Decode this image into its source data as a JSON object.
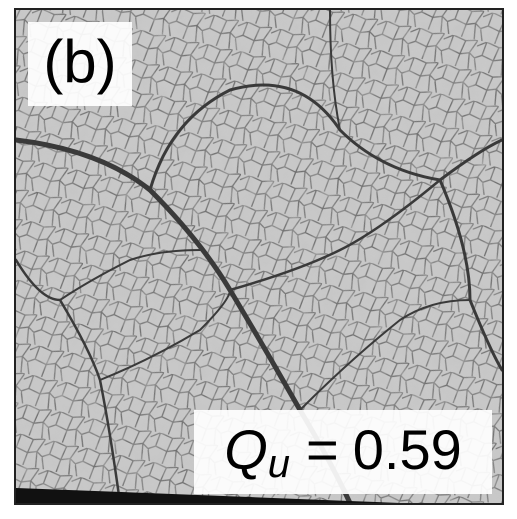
{
  "panel_label": "(b)",
  "annotation": {
    "symbol": "Q",
    "subscript": "u",
    "relation": "=",
    "value": "0.59"
  }
}
